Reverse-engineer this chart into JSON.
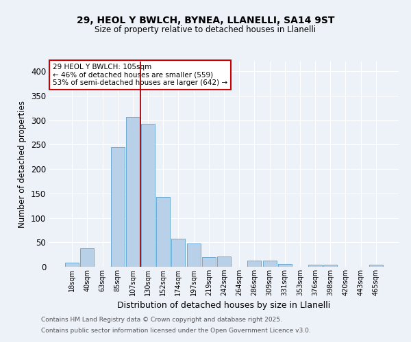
{
  "title1": "29, HEOL Y BWLCH, BYNEA, LLANELLI, SA14 9ST",
  "title2": "Size of property relative to detached houses in Llanelli",
  "xlabel": "Distribution of detached houses by size in Llanelli",
  "ylabel": "Number of detached properties",
  "categories": [
    "18sqm",
    "40sqm",
    "63sqm",
    "85sqm",
    "107sqm",
    "130sqm",
    "152sqm",
    "174sqm",
    "197sqm",
    "219sqm",
    "242sqm",
    "264sqm",
    "286sqm",
    "309sqm",
    "331sqm",
    "353sqm",
    "376sqm",
    "398sqm",
    "420sqm",
    "443sqm",
    "465sqm"
  ],
  "values": [
    8,
    38,
    0,
    245,
    307,
    293,
    143,
    57,
    48,
    20,
    21,
    0,
    12,
    13,
    6,
    0,
    4,
    4,
    0,
    0,
    4
  ],
  "bar_color": "#b8d0e8",
  "bar_edge_color": "#6aaad4",
  "bg_color": "#edf1f8",
  "grid_color": "#ffffff",
  "vline_x": 4.5,
  "vline_color": "#aa0000",
  "annotation_text": "29 HEOL Y BWLCH: 105sqm\n← 46% of detached houses are smaller (559)\n53% of semi-detached houses are larger (642) →",
  "annotation_box_color": "#ffffff",
  "annotation_box_edge": "#cc0000",
  "footer1": "Contains HM Land Registry data © Crown copyright and database right 2025.",
  "footer2": "Contains public sector information licensed under the Open Government Licence v3.0.",
  "ylim": [
    0,
    420
  ],
  "yticks": [
    0,
    50,
    100,
    150,
    200,
    250,
    300,
    350,
    400
  ]
}
